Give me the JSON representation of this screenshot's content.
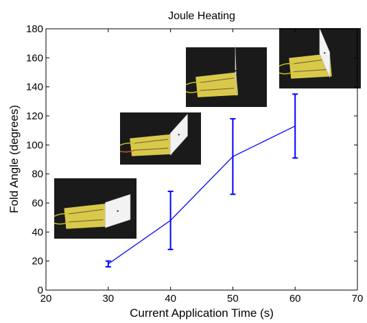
{
  "chart_data": {
    "type": "line",
    "title": "Joule Heating",
    "xlabel": "Current Application Time (s)",
    "ylabel": "Fold Angle (degrees)",
    "xlim": [
      20,
      70
    ],
    "ylim": [
      0,
      180
    ],
    "x_ticks": [
      20,
      30,
      40,
      50,
      60,
      70
    ],
    "y_ticks": [
      0,
      20,
      40,
      60,
      80,
      100,
      120,
      140,
      160,
      180
    ],
    "grid": false,
    "series": [
      {
        "x": [
          30,
          40,
          50,
          60
        ],
        "y": [
          18,
          48,
          92,
          113
        ],
        "err_low": [
          16,
          28,
          66,
          91
        ],
        "err_high": [
          20,
          68,
          118,
          135
        ]
      }
    ],
    "colors": {
      "series": "#0000ff",
      "inset_background": "#1a1a1a",
      "inset_board": "#d8c94a",
      "inset_panel": "#f2f2f2"
    },
    "insets": [
      {
        "at_x": 30,
        "fold_angle_deg": 18
      },
      {
        "at_x": 40,
        "fold_angle_deg": 48
      },
      {
        "at_x": 50,
        "fold_angle_deg": 92
      },
      {
        "at_x": 60,
        "fold_angle_deg": 113
      }
    ]
  }
}
